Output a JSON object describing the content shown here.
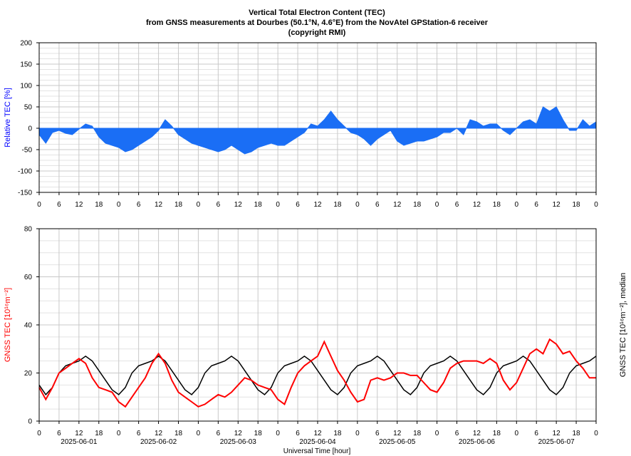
{
  "title": {
    "line1": "Vertical Total Electron Content (TEC)",
    "line2": "from GNSS measurements at Dourbes (50.1°N, 4.6°E) from the NovAtel GPStation-6 receiver",
    "line3": "(copyright RMI)"
  },
  "colors": {
    "relative": "#1a6ef5",
    "tec": "#ff0000",
    "median": "#000000",
    "relative_label": "#0000ff",
    "tec_label": "#ff0000",
    "grid": "#c8c8c8"
  },
  "chart_data": [
    {
      "type": "area",
      "ylabel": "Relative TEC [%]",
      "ylim": [
        -150,
        200
      ],
      "yticks": [
        -150,
        -100,
        -50,
        0,
        50,
        100,
        150,
        200
      ],
      "xlim": [
        0,
        168
      ],
      "xtick_labels": [
        "0",
        "6",
        "12",
        "18",
        "0",
        "6",
        "12",
        "18",
        "0",
        "6",
        "12",
        "18",
        "0",
        "6",
        "12",
        "18",
        "0",
        "6",
        "12",
        "18",
        "0",
        "6",
        "12",
        "18",
        "0",
        "6",
        "12",
        "18",
        "0"
      ],
      "grid": true,
      "series": [
        {
          "x": [
            0,
            2,
            4,
            6,
            8,
            10,
            12,
            14,
            16,
            18,
            20,
            22,
            24,
            26,
            28,
            30,
            32,
            34,
            36,
            38,
            40,
            42,
            44,
            46,
            48,
            50,
            52,
            54,
            56,
            58,
            60,
            62,
            64,
            66,
            68,
            70,
            72,
            74,
            76,
            78,
            80,
            82,
            84,
            86,
            88,
            90,
            92,
            94,
            96,
            98,
            100,
            102,
            104,
            106,
            108,
            110,
            112,
            114,
            116,
            118,
            120,
            122,
            124,
            126,
            128,
            130,
            132,
            134,
            136,
            138,
            140,
            142,
            144,
            146,
            148,
            150,
            152,
            154,
            156,
            158,
            160,
            162,
            164,
            166,
            168
          ],
          "values": [
            -15,
            -35,
            -10,
            -5,
            -12,
            -15,
            -2,
            10,
            5,
            -20,
            -35,
            -40,
            -45,
            -55,
            -50,
            -40,
            -30,
            -20,
            -5,
            20,
            5,
            -15,
            -25,
            -35,
            -40,
            -45,
            -50,
            -55,
            -50,
            -40,
            -50,
            -60,
            -55,
            -45,
            -40,
            -35,
            -40,
            -40,
            -30,
            -20,
            -10,
            10,
            5,
            20,
            40,
            20,
            5,
            -10,
            -15,
            -25,
            -40,
            -25,
            -15,
            -5,
            -30,
            -40,
            -35,
            -30,
            -30,
            -25,
            -20,
            -10,
            -10,
            0,
            -15,
            20,
            15,
            5,
            10,
            10,
            -5,
            -15,
            0,
            15,
            20,
            10,
            50,
            40,
            50,
            20,
            -5,
            -5,
            20,
            5,
            15
          ]
        }
      ]
    },
    {
      "type": "line",
      "ylabel": "GNSS TEC [10¹⁶m⁻²]",
      "ylabel_right": "GNSS TEC [10¹⁶m⁻²], median",
      "xlabel": "Universal Time [hour]",
      "ylim": [
        0,
        80
      ],
      "yticks": [
        0,
        20,
        40,
        60,
        80
      ],
      "xlim": [
        0,
        168
      ],
      "xtick_labels": [
        "0",
        "6",
        "12",
        "18",
        "0",
        "6",
        "12",
        "18",
        "0",
        "6",
        "12",
        "18",
        "0",
        "6",
        "12",
        "18",
        "0",
        "6",
        "12",
        "18",
        "0",
        "6",
        "12",
        "18",
        "0",
        "6",
        "12",
        "18",
        "0"
      ],
      "date_labels": [
        "2025-06-01",
        "2025-06-02",
        "2025-06-03",
        "2025-06-04",
        "2025-06-05",
        "2025-06-06",
        "2025-06-07"
      ],
      "grid": true,
      "series": [
        {
          "x": [
            0,
            2,
            4,
            6,
            8,
            10,
            12,
            14,
            16,
            18,
            20,
            22,
            24,
            26,
            28,
            30,
            32,
            34,
            36,
            38,
            40,
            42,
            44,
            46,
            48,
            50,
            52,
            54,
            56,
            58,
            60,
            62,
            64,
            66,
            68,
            70,
            72,
            74,
            76,
            78,
            80,
            82,
            84,
            86,
            88,
            90,
            92,
            94,
            96,
            98,
            100,
            102,
            104,
            106,
            108,
            110,
            112,
            114,
            116,
            118,
            120,
            122,
            124,
            126,
            128,
            130,
            132,
            134,
            136,
            138,
            140,
            142,
            144,
            146,
            148,
            150,
            152,
            154,
            156,
            158,
            160,
            162,
            164,
            166,
            168
          ],
          "values": [
            14,
            9,
            14,
            20,
            22,
            24,
            26,
            24,
            18,
            14,
            13,
            12,
            8,
            6,
            10,
            14,
            18,
            24,
            28,
            24,
            17,
            12,
            10,
            8,
            6,
            7,
            9,
            11,
            10,
            12,
            15,
            18,
            17,
            15,
            14,
            13,
            9,
            7,
            14,
            20,
            23,
            25,
            27,
            33,
            27,
            21,
            17,
            12,
            8,
            9,
            17,
            18,
            17,
            18,
            20,
            20,
            19,
            19,
            16,
            13,
            12,
            16,
            22,
            24,
            25,
            25,
            25,
            24,
            26,
            24,
            17,
            13,
            16,
            22,
            28,
            30,
            28,
            34,
            32,
            28,
            29,
            25,
            22,
            18,
            18
          ]
        },
        {
          "x": [
            0,
            2,
            4,
            6,
            8,
            10,
            12,
            14,
            16,
            18,
            20,
            22,
            24,
            26,
            28,
            30,
            32,
            34,
            36,
            38,
            40,
            42,
            44,
            46,
            48,
            50,
            52,
            54,
            56,
            58,
            60,
            62,
            64,
            66,
            68,
            70,
            72,
            74,
            76,
            78,
            80,
            82,
            84,
            86,
            88,
            90,
            92,
            94,
            96,
            98,
            100,
            102,
            104,
            106,
            108,
            110,
            112,
            114,
            116,
            118,
            120,
            122,
            124,
            126,
            128,
            130,
            132,
            134,
            136,
            138,
            140,
            142,
            144,
            146,
            148,
            150,
            152,
            154,
            156,
            158,
            160,
            162,
            164,
            166,
            168
          ],
          "values": [
            15,
            11,
            14,
            20,
            23,
            24,
            25,
            27,
            25,
            21,
            17,
            13,
            11,
            14,
            20,
            23,
            24,
            25,
            27,
            25,
            21,
            17,
            13,
            11,
            14,
            20,
            23,
            24,
            25,
            27,
            25,
            21,
            17,
            13,
            11,
            14,
            20,
            23,
            24,
            25,
            27,
            25,
            21,
            17,
            13,
            11,
            14,
            20,
            23,
            24,
            25,
            27,
            25,
            21,
            17,
            13,
            11,
            14,
            20,
            23,
            24,
            25,
            27,
            25,
            21,
            17,
            13,
            11,
            14,
            20,
            23,
            24,
            25,
            27,
            25,
            21,
            17,
            13,
            11,
            14,
            20,
            23,
            24,
            25,
            27
          ]
        }
      ]
    }
  ]
}
